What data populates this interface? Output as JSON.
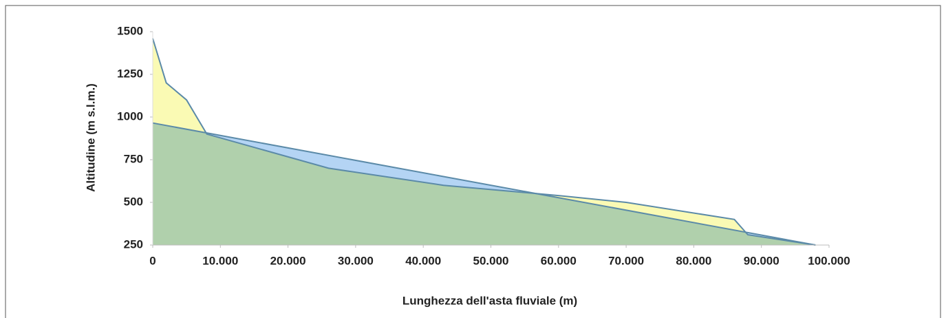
{
  "chart_data": {
    "type": "area",
    "xlabel": "Lunghezza dell'asta fluviale (m)",
    "ylabel": "Altitudine (m s.l.m.)",
    "series": [
      {
        "color": "#fafab4",
        "x": [
          0,
          2000,
          5000,
          8000,
          26000,
          43000,
          60000,
          70000,
          86000,
          88000,
          98000
        ],
        "values": [
          1460,
          1200,
          1100,
          900,
          700,
          600,
          540,
          500,
          400,
          310,
          250
        ]
      },
      {
        "color": "#b4d4f4",
        "x": [
          0,
          98000
        ],
        "values": [
          965,
          250
        ]
      }
    ],
    "xlim": [
      0,
      100000
    ],
    "xticks": [
      0,
      {
        "value": 10000,
        "label": "10.000"
      },
      {
        "value": 20000,
        "label": "20.000"
      },
      {
        "value": 30000,
        "label": "30.000"
      },
      {
        "value": 40000,
        "label": "40.000"
      },
      {
        "value": 50000,
        "label": "50.000"
      },
      {
        "value": 60000,
        "label": "60.000"
      },
      {
        "value": 70000,
        "label": "70.000"
      },
      {
        "value": 80000,
        "label": "80.000"
      },
      {
        "value": 90000,
        "label": "90.000"
      },
      {
        "value": 100000,
        "label": "100.000"
      }
    ],
    "ylim": [
      250,
      1500
    ],
    "yticks": [
      250,
      500,
      750,
      1000,
      1250,
      1500
    ],
    "grid": false
  }
}
